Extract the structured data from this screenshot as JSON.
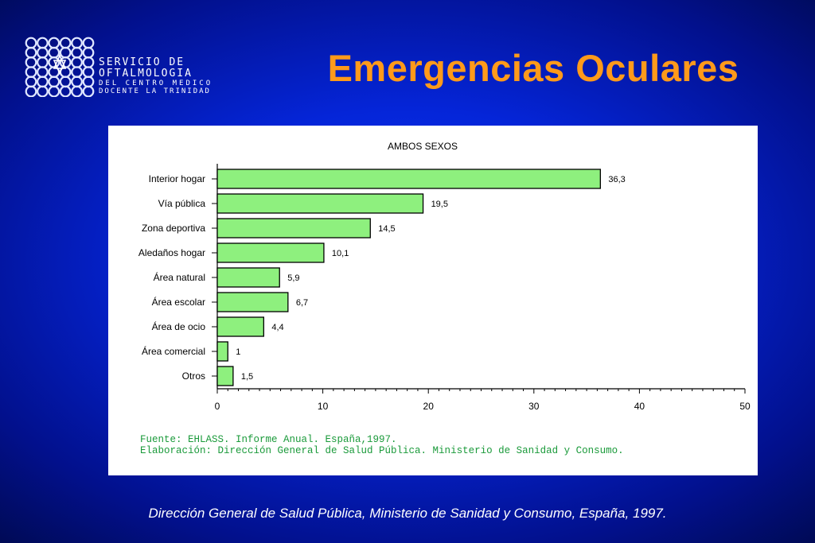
{
  "logo": {
    "line1": "SERVICIO DE",
    "line2": "OFTALMOLOGIA",
    "line3": "DEL CENTRO MEDICO",
    "line4": "DOCENTE LA TRINIDAD"
  },
  "slide_title": "Emergencias Oculares",
  "chart_data": {
    "type": "bar",
    "orientation": "horizontal",
    "title": "AMBOS SEXOS",
    "categories": [
      "Interior hogar",
      "Vía pública",
      "Zona deportiva",
      "Aledaños hogar",
      "Área natural",
      "Área escolar",
      "Área de ocio",
      "Área comercial",
      "Otros"
    ],
    "values": [
      36.3,
      19.5,
      14.5,
      10.1,
      5.9,
      6.7,
      4.4,
      1,
      1.5
    ],
    "value_labels": [
      "36,3",
      "19,5",
      "14,5",
      "10,1",
      "5,9",
      "6,7",
      "4,4",
      "1",
      "1,5"
    ],
    "xlim": [
      0,
      50
    ],
    "xticks": [
      0,
      10,
      20,
      30,
      40,
      50
    ],
    "grid": false,
    "bar_color": "#8ef07e"
  },
  "source": {
    "line1": "Fuente: EHLASS. Informe Anual. España,1997.",
    "line2": "Elaboración: Dirección General de Salud Pública. Ministerio de Sanidad y Consumo."
  },
  "footer": "Dirección General de Salud Pública, Ministerio de Sanidad y Consumo, España, 1997.",
  "colors": {
    "title": "#ff9a1a",
    "source_text": "#1a9a3a",
    "background": "#0525d8"
  }
}
